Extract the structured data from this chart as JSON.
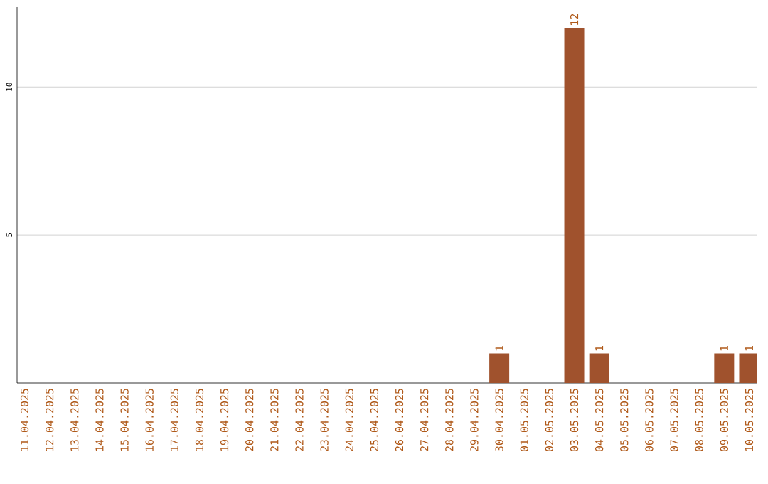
{
  "chart_data": {
    "type": "bar",
    "categories": [
      "11.04.2025",
      "12.04.2025",
      "13.04.2025",
      "14.04.2025",
      "15.04.2025",
      "16.04.2025",
      "17.04.2025",
      "18.04.2025",
      "19.04.2025",
      "20.04.2025",
      "21.04.2025",
      "22.04.2025",
      "23.04.2025",
      "24.04.2025",
      "25.04.2025",
      "26.04.2025",
      "27.04.2025",
      "28.04.2025",
      "29.04.2025",
      "30.04.2025",
      "01.05.2025",
      "02.05.2025",
      "03.05.2025",
      "04.05.2025",
      "05.05.2025",
      "06.05.2025",
      "07.05.2025",
      "08.05.2025",
      "09.05.2025",
      "10.05.2025"
    ],
    "values": [
      0,
      0,
      0,
      0,
      0,
      0,
      0,
      0,
      0,
      0,
      0,
      0,
      0,
      0,
      0,
      0,
      0,
      0,
      0,
      1,
      0,
      0,
      12,
      1,
      0,
      0,
      0,
      0,
      1,
      1
    ],
    "value_labels": [
      null,
      null,
      null,
      null,
      null,
      null,
      null,
      null,
      null,
      null,
      null,
      null,
      null,
      null,
      null,
      null,
      null,
      null,
      null,
      "1",
      null,
      null,
      "12",
      "1",
      null,
      null,
      null,
      null,
      "1",
      "1"
    ],
    "color": "#a0522d",
    "ylim": [
      0,
      12.7
    ],
    "yticks": [
      5,
      10
    ],
    "grid": "y"
  }
}
